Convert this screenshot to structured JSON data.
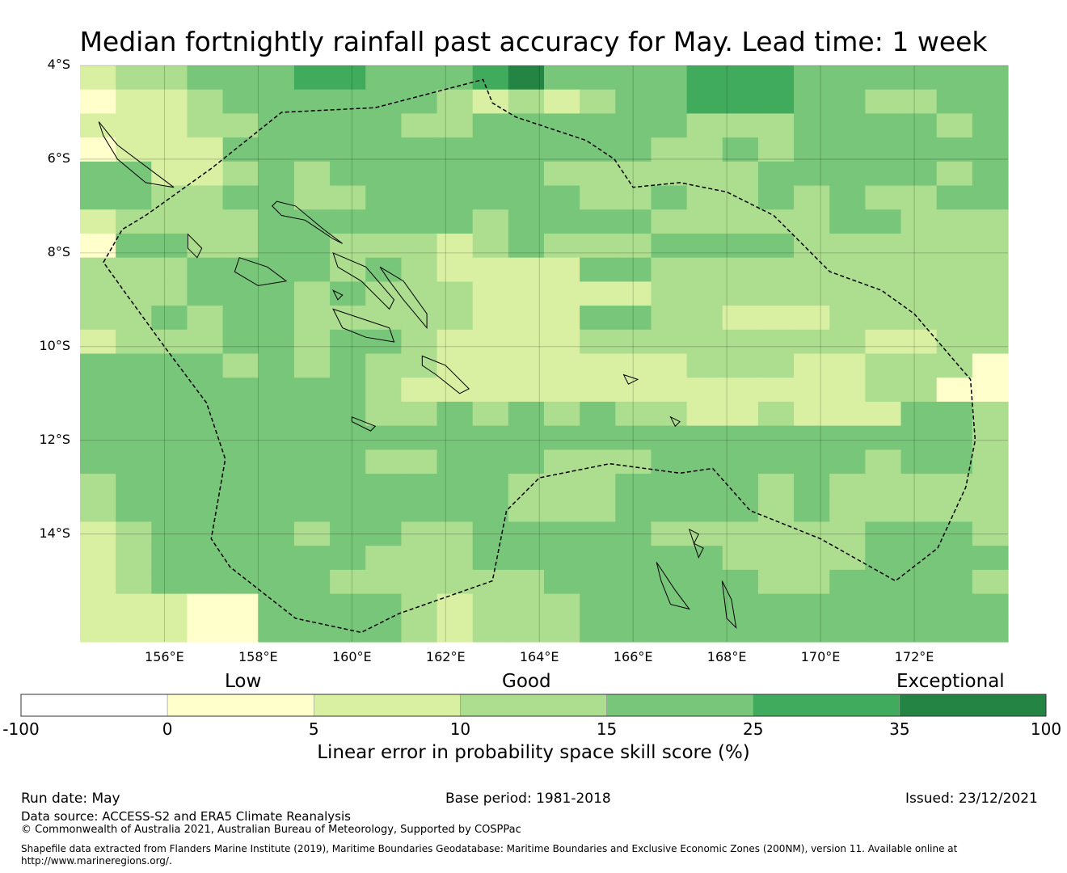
{
  "title": "Median fortnightly rainfall past accuracy for May. Lead time: 1 week",
  "map": {
    "lon_min": 154.2,
    "lon_max": 174.0,
    "lat_min": -16.3,
    "lat_max": -4.0,
    "lat_ticks": [
      {
        "value": -4,
        "label": "4°S"
      },
      {
        "value": -6,
        "label": "6°S"
      },
      {
        "value": -8,
        "label": "8°S"
      },
      {
        "value": -10,
        "label": "10°S"
      },
      {
        "value": -12,
        "label": "12°S"
      },
      {
        "value": -14,
        "label": "14°S"
      }
    ],
    "lon_ticks": [
      {
        "value": 156,
        "label": "156°E"
      },
      {
        "value": 158,
        "label": "158°E"
      },
      {
        "value": 160,
        "label": "160°E"
      },
      {
        "value": 162,
        "label": "162°E"
      },
      {
        "value": 164,
        "label": "164°E"
      },
      {
        "value": 166,
        "label": "166°E"
      },
      {
        "value": 168,
        "label": "168°E"
      },
      {
        "value": 170,
        "label": "170°E"
      },
      {
        "value": 172,
        "label": "172°E"
      }
    ],
    "grid": "on",
    "cell_classes": "0=0..5, 1=5..10, 2=10..15, 3=15..25, 4=25..35, 5=35..100",
    "grid_rows": [
      "12233344333453333444333333",
      "01123333332121233444332233",
      "11122333322333333222333323",
      "01113333333333332232333333",
      "33112323333332222223333323",
      "33223322333333223223232233",
      "12222333333233332222233222",
      "03322332221232223333222222",
      "22233332321111332222222222",
      "22233323222111112222222222",
      "22323322222111332211122222",
      "12223323321111222222221122",
      "33332323221111111222112220",
      "33333333211111111111112200",
      "33333333223232322112111332",
      "33333333333333333333333332",
      "33333333223332223333332332",
      "23333333333322233332322222",
      "23333333333322233332322222",
      "12333323322333332222223332",
      "12333333222333333322223333",
      "12333332222223333332233332",
      "11100333321222333333333333",
      "11100333321222333333333333"
    ],
    "eez_outline": [
      [
        154.7,
        -8.2
      ],
      [
        155.1,
        -7.5
      ],
      [
        155.6,
        -7.2
      ],
      [
        157.0,
        -6.2
      ],
      [
        158.5,
        -5.0
      ],
      [
        160.5,
        -4.9
      ],
      [
        162.8,
        -4.3
      ],
      [
        163.0,
        -4.8
      ],
      [
        163.5,
        -5.1
      ],
      [
        165.0,
        -5.6
      ],
      [
        165.6,
        -6.0
      ],
      [
        166.0,
        -6.6
      ],
      [
        167.0,
        -6.5
      ],
      [
        168.0,
        -6.7
      ],
      [
        169.0,
        -7.2
      ],
      [
        170.2,
        -8.4
      ],
      [
        171.3,
        -8.8
      ],
      [
        172.0,
        -9.3
      ],
      [
        173.2,
        -10.7
      ],
      [
        173.3,
        -12.0
      ],
      [
        173.1,
        -13.0
      ],
      [
        172.5,
        -14.3
      ],
      [
        171.6,
        -15.0
      ],
      [
        170.0,
        -14.1
      ],
      [
        168.5,
        -13.5
      ],
      [
        167.7,
        -12.6
      ],
      [
        167.0,
        -12.7
      ],
      [
        165.5,
        -12.5
      ],
      [
        164.0,
        -12.8
      ],
      [
        163.3,
        -13.5
      ],
      [
        163.0,
        -15.0
      ],
      [
        161.0,
        -15.7
      ],
      [
        160.2,
        -16.1
      ],
      [
        158.8,
        -15.8
      ],
      [
        157.4,
        -14.7
      ],
      [
        157.0,
        -14.1
      ],
      [
        157.3,
        -12.4
      ],
      [
        156.9,
        -11.2
      ],
      [
        156.0,
        -10.0
      ],
      [
        155.2,
        -8.9
      ]
    ],
    "islands": [
      [
        [
          158.4,
          -6.9
        ],
        [
          158.8,
          -7.0
        ],
        [
          159.4,
          -7.5
        ],
        [
          159.8,
          -7.8
        ],
        [
          159.6,
          -7.7
        ],
        [
          159.0,
          -7.3
        ],
        [
          158.5,
          -7.2
        ],
        [
          158.3,
          -7.0
        ]
      ],
      [
        [
          159.6,
          -8.0
        ],
        [
          160.3,
          -8.3
        ],
        [
          160.9,
          -9.0
        ],
        [
          160.8,
          -9.2
        ],
        [
          160.2,
          -8.6
        ],
        [
          159.7,
          -8.3
        ]
      ],
      [
        [
          160.6,
          -8.3
        ],
        [
          161.1,
          -8.6
        ],
        [
          161.6,
          -9.3
        ],
        [
          161.6,
          -9.6
        ],
        [
          161.1,
          -9.0
        ],
        [
          160.8,
          -8.6
        ]
      ],
      [
        [
          159.6,
          -9.2
        ],
        [
          160.2,
          -9.4
        ],
        [
          160.8,
          -9.6
        ],
        [
          160.9,
          -9.9
        ],
        [
          160.3,
          -9.8
        ],
        [
          159.8,
          -9.6
        ],
        [
          159.7,
          -9.4
        ]
      ],
      [
        [
          161.5,
          -10.2
        ],
        [
          162.0,
          -10.4
        ],
        [
          162.5,
          -10.9
        ],
        [
          162.3,
          -11.0
        ],
        [
          161.8,
          -10.6
        ],
        [
          161.5,
          -10.4
        ]
      ],
      [
        [
          157.6,
          -8.1
        ],
        [
          158.2,
          -8.3
        ],
        [
          158.6,
          -8.6
        ],
        [
          158.0,
          -8.7
        ],
        [
          157.5,
          -8.4
        ]
      ],
      [
        [
          154.6,
          -5.2
        ],
        [
          155.0,
          -5.7
        ],
        [
          155.8,
          -6.3
        ],
        [
          156.2,
          -6.6
        ],
        [
          155.6,
          -6.5
        ],
        [
          155.0,
          -6.0
        ],
        [
          154.7,
          -5.5
        ]
      ],
      [
        [
          156.5,
          -7.6
        ],
        [
          156.8,
          -7.9
        ],
        [
          156.7,
          -8.1
        ],
        [
          156.5,
          -7.9
        ]
      ],
      [
        [
          165.8,
          -10.6
        ],
        [
          166.1,
          -10.7
        ],
        [
          165.9,
          -10.8
        ]
      ],
      [
        [
          166.8,
          -11.5
        ],
        [
          167.0,
          -11.6
        ],
        [
          166.9,
          -11.7
        ]
      ],
      [
        [
          166.5,
          -14.6
        ],
        [
          166.9,
          -15.2
        ],
        [
          167.2,
          -15.6
        ],
        [
          166.8,
          -15.5
        ],
        [
          166.6,
          -15.0
        ]
      ],
      [
        [
          167.9,
          -15.0
        ],
        [
          168.1,
          -15.4
        ],
        [
          168.2,
          -16.0
        ],
        [
          168.0,
          -15.8
        ]
      ],
      [
        [
          167.2,
          -13.9
        ],
        [
          167.4,
          -14.0
        ],
        [
          167.3,
          -14.2
        ]
      ],
      [
        [
          167.3,
          -14.2
        ],
        [
          167.5,
          -14.3
        ],
        [
          167.4,
          -14.5
        ]
      ],
      [
        [
          160.0,
          -11.5
        ],
        [
          160.5,
          -11.7
        ],
        [
          160.4,
          -11.8
        ],
        [
          160.0,
          -11.6
        ]
      ],
      [
        [
          159.6,
          -8.8
        ],
        [
          159.8,
          -8.9
        ],
        [
          159.7,
          -9.0
        ]
      ]
    ]
  },
  "legend": {
    "categories": [
      "Low",
      "Good",
      "Exceptional"
    ],
    "bins": [
      {
        "from": -100,
        "to": 0,
        "color": "#ffffff"
      },
      {
        "from": 0,
        "to": 5,
        "color": "#ffffcc"
      },
      {
        "from": 5,
        "to": 10,
        "color": "#d9f0a3"
      },
      {
        "from": 10,
        "to": 15,
        "color": "#addd8e"
      },
      {
        "from": 15,
        "to": 25,
        "color": "#78c679"
      },
      {
        "from": 25,
        "to": 35,
        "color": "#41ab5d"
      },
      {
        "from": 35,
        "to": 100,
        "color": "#238443"
      }
    ],
    "tick_labels": [
      "-100",
      "0",
      "5",
      "10",
      "15",
      "25",
      "35",
      "100"
    ],
    "title": "Linear error in probability space skill score (%)"
  },
  "footer": {
    "run_date": "Run date: May",
    "base_period": "Base period: 1981-2018",
    "issued": "Issued: 23/12/2021",
    "data_source": "Data source: ACCESS-S2 and ERA5 Climate Reanalysis",
    "copyright": "© Commonwealth of Australia 2021, Australian Bureau of Meteorology, Supported by COSPPac",
    "shapefile_line1": "Shapefile data extracted from Flanders Marine Institute (2019), Maritime Boundaries Geodatabase: Maritime Boundaries and Exclusive Economic Zones (200NM), version 11. Available online at",
    "shapefile_line2": "http://www.marineregions.org/."
  }
}
